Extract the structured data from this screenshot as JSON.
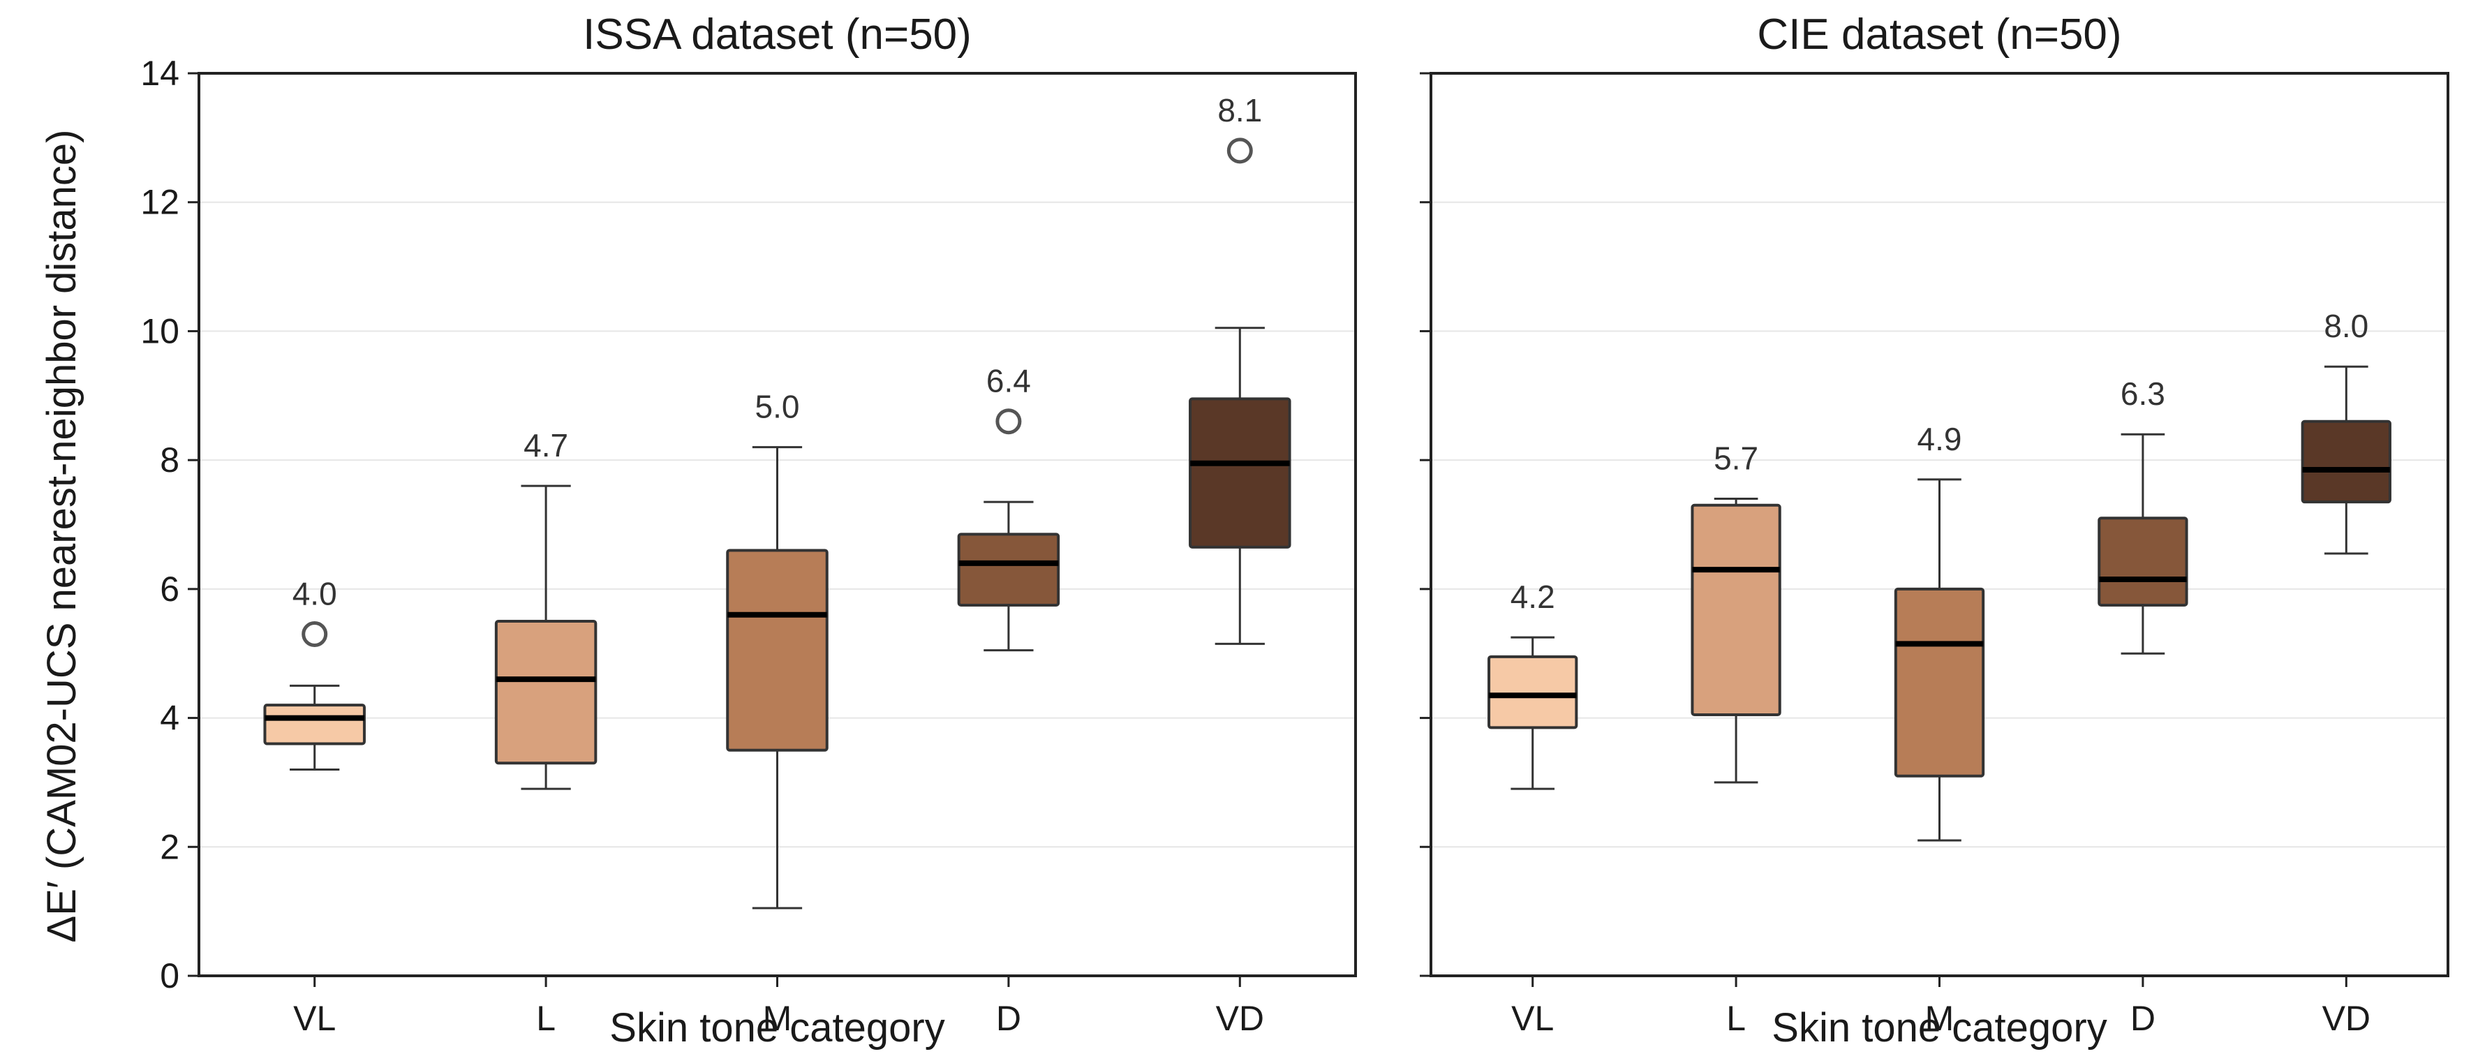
{
  "figure": {
    "ylabel": "ΔE′ (CAM02-UCS nearest-neighbor distance)"
  },
  "chart_data": [
    {
      "type": "box",
      "title": "ISSA dataset (n=50)",
      "xlabel": "Skin tone category",
      "ylabel": "ΔE′ (CAM02-UCS nearest-neighbor distance)",
      "ylim": [
        0,
        14
      ],
      "yticks": [
        0,
        2,
        4,
        6,
        8,
        10,
        12,
        14
      ],
      "grid": "horizontal",
      "categories": [
        "VL",
        "L",
        "M",
        "D",
        "VD"
      ],
      "colors": [
        "#f6c9a6",
        "#d8a17d",
        "#b77d57",
        "#86573a",
        "#5a3827"
      ],
      "boxes": [
        {
          "category": "VL",
          "whisker_low": 3.2,
          "q1": 3.6,
          "median": 4.0,
          "q3": 4.2,
          "whisker_high": 4.5,
          "outliers": [
            5.3
          ],
          "annotation": "4.0"
        },
        {
          "category": "L",
          "whisker_low": 2.9,
          "q1": 3.3,
          "median": 4.6,
          "q3": 5.5,
          "whisker_high": 7.6,
          "outliers": [],
          "annotation": "4.7"
        },
        {
          "category": "M",
          "whisker_low": 1.05,
          "q1": 3.5,
          "median": 5.6,
          "q3": 6.6,
          "whisker_high": 8.2,
          "outliers": [],
          "annotation": "5.0"
        },
        {
          "category": "D",
          "whisker_low": 5.05,
          "q1": 5.75,
          "median": 6.4,
          "q3": 6.85,
          "whisker_high": 7.35,
          "outliers": [
            8.6
          ],
          "annotation": "6.4"
        },
        {
          "category": "VD",
          "whisker_low": 5.15,
          "q1": 6.65,
          "median": 7.95,
          "q3": 8.95,
          "whisker_high": 10.05,
          "outliers": [
            12.8
          ],
          "annotation": "8.1"
        }
      ]
    },
    {
      "type": "box",
      "title": "CIE dataset (n=50)",
      "xlabel": "Skin tone category",
      "ylim": [
        0,
        14
      ],
      "yticks": [
        0,
        2,
        4,
        6,
        8,
        10,
        12,
        14
      ],
      "grid": "horizontal",
      "categories": [
        "VL",
        "L",
        "M",
        "D",
        "VD"
      ],
      "colors": [
        "#f6c9a6",
        "#d8a17d",
        "#b77d57",
        "#86573a",
        "#5a3827"
      ],
      "boxes": [
        {
          "category": "VL",
          "whisker_low": 2.9,
          "q1": 3.85,
          "median": 4.35,
          "q3": 4.95,
          "whisker_high": 5.25,
          "outliers": [],
          "annotation": "4.2"
        },
        {
          "category": "L",
          "whisker_low": 3.0,
          "q1": 4.05,
          "median": 6.3,
          "q3": 7.3,
          "whisker_high": 7.4,
          "outliers": [],
          "annotation": "5.7"
        },
        {
          "category": "M",
          "whisker_low": 2.1,
          "q1": 3.1,
          "median": 5.15,
          "q3": 6.0,
          "whisker_high": 7.7,
          "outliers": [],
          "annotation": "4.9"
        },
        {
          "category": "D",
          "whisker_low": 5.0,
          "q1": 5.75,
          "median": 6.15,
          "q3": 7.1,
          "whisker_high": 8.4,
          "outliers": [],
          "annotation": "6.3"
        },
        {
          "category": "VD",
          "whisker_low": 6.55,
          "q1": 7.35,
          "median": 7.85,
          "q3": 8.6,
          "whisker_high": 9.45,
          "outliers": [],
          "annotation": "8.0"
        }
      ]
    }
  ]
}
